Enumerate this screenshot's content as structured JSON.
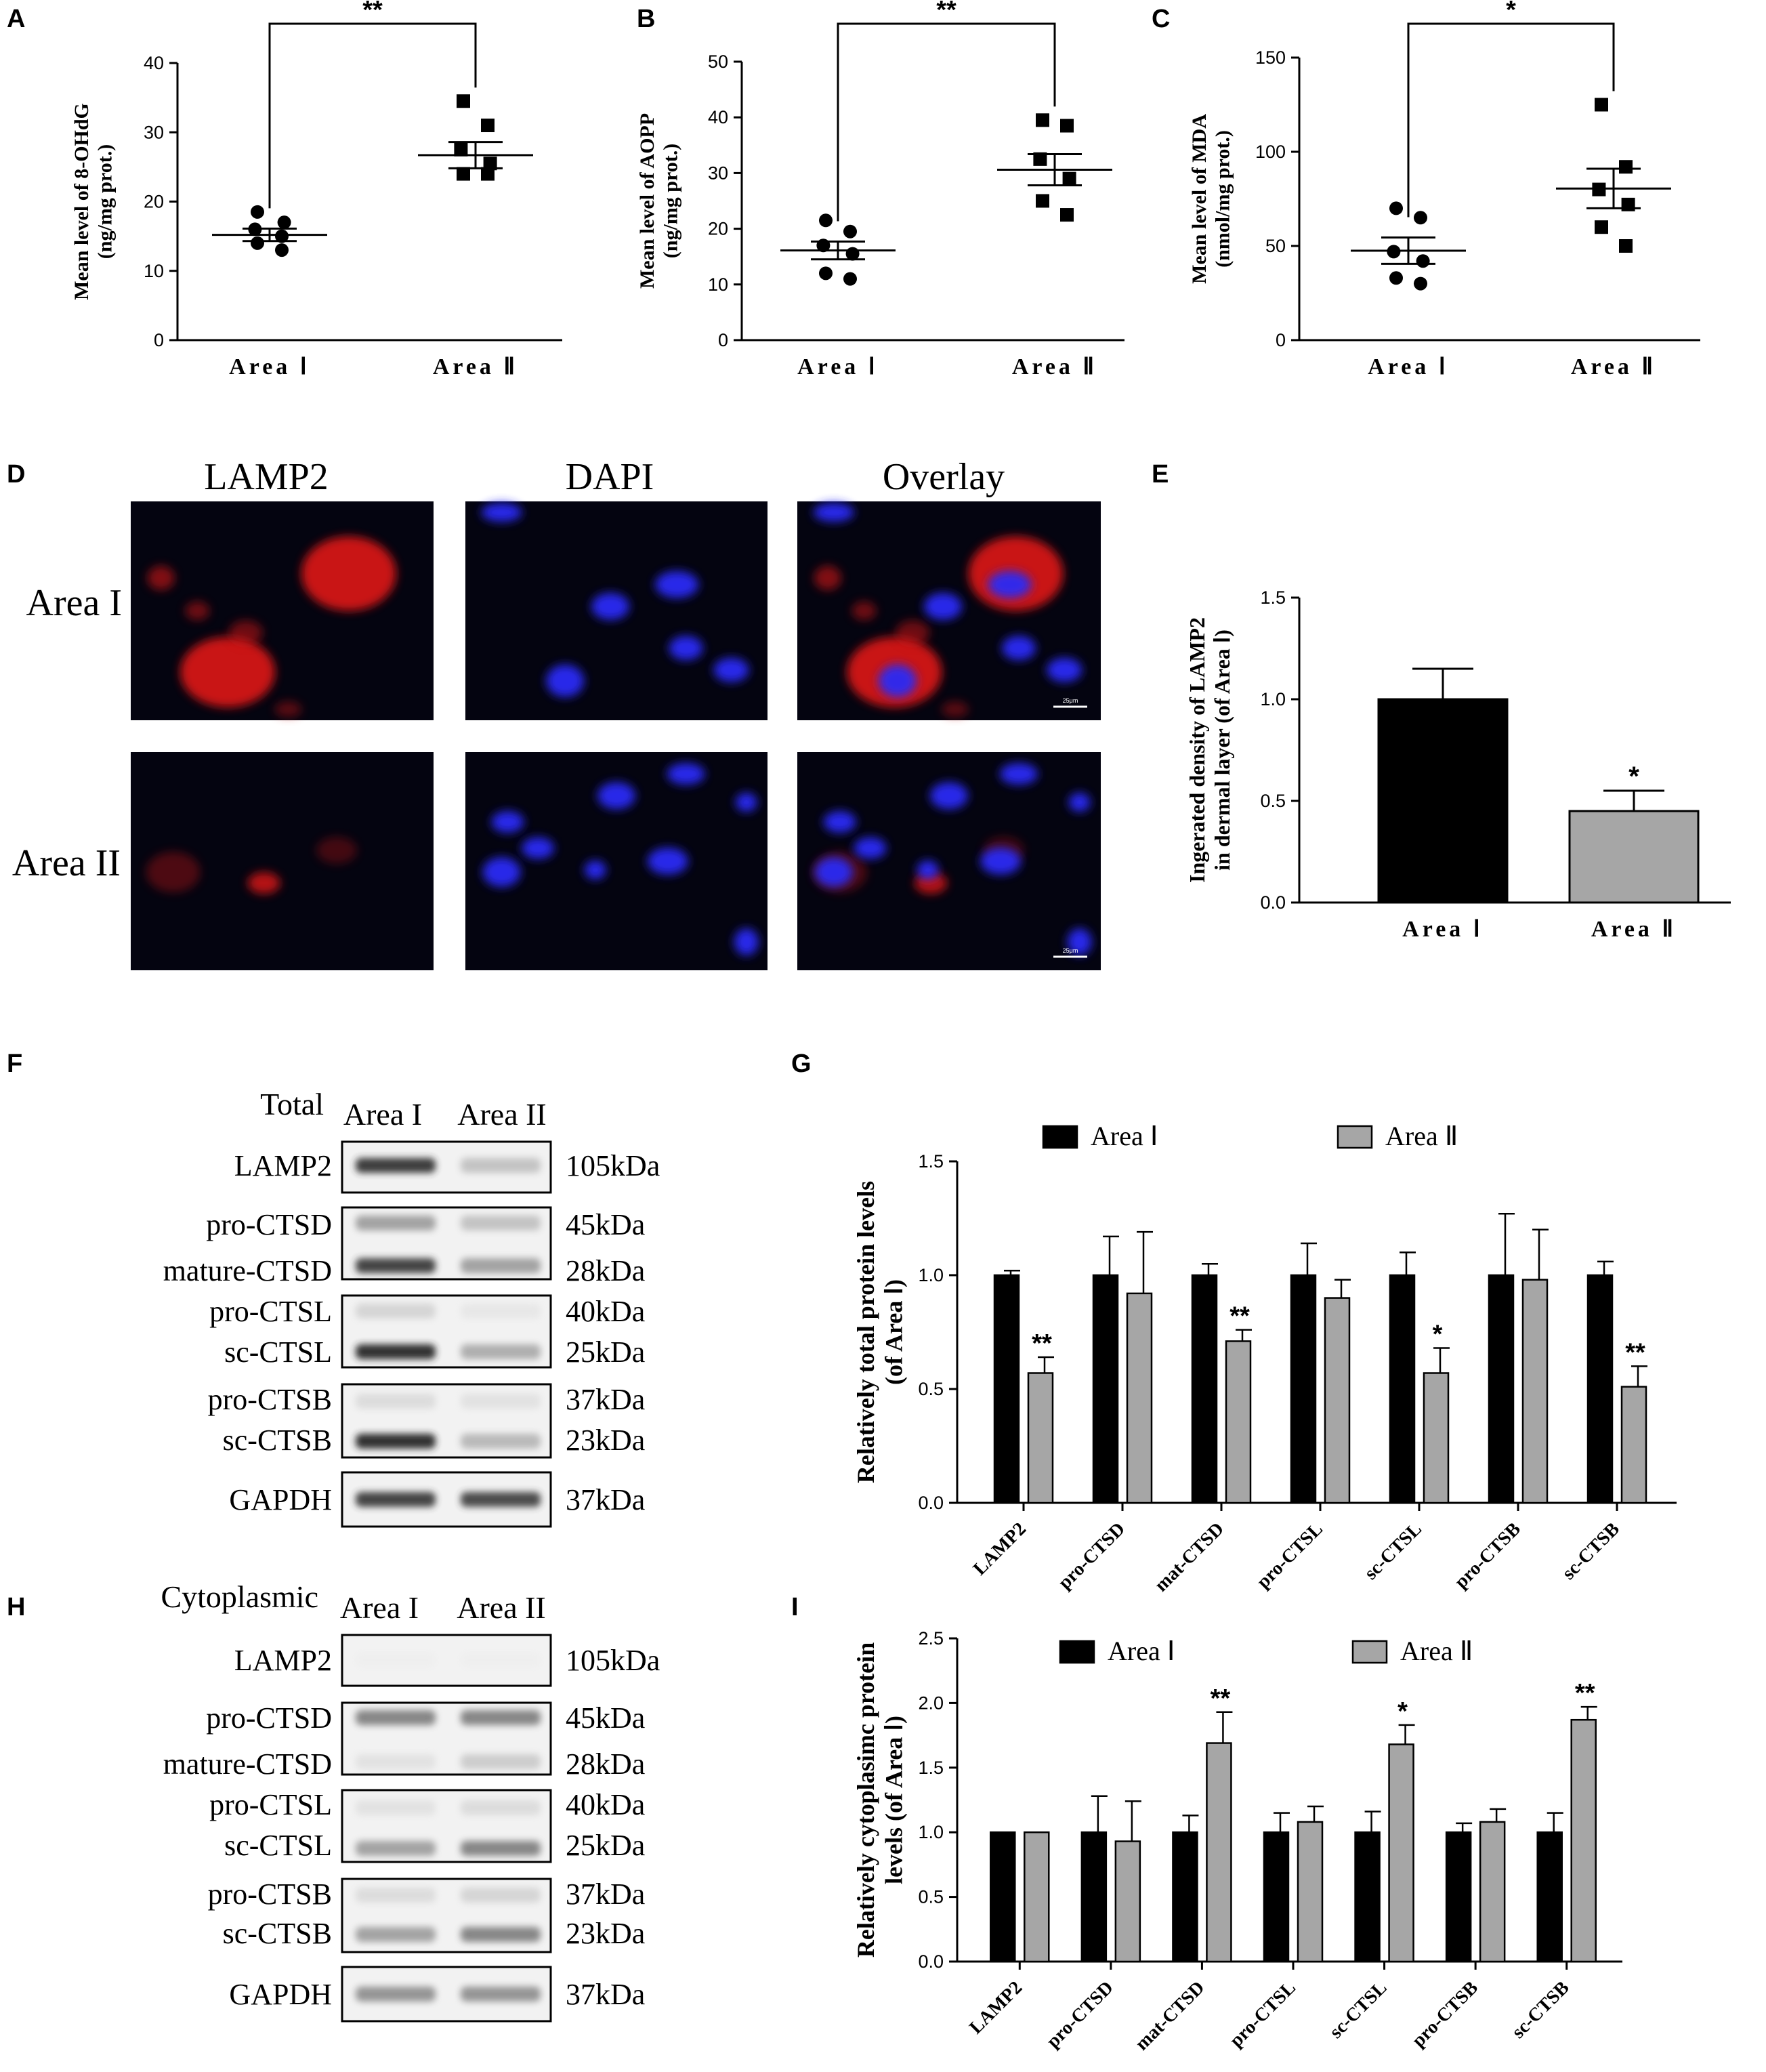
{
  "panel_labels": [
    "A",
    "B",
    "C",
    "D",
    "E",
    "F",
    "G",
    "H",
    "I"
  ],
  "group_labels": [
    "Area Ⅰ",
    "Area Ⅱ"
  ],
  "chart_data": [
    {
      "panel": "A",
      "type": "scatter",
      "ylabel": [
        "Mean level of 8-OHdG",
        "(ng/mg prot.)"
      ],
      "categories": [
        "Area Ⅰ",
        "Area Ⅱ"
      ],
      "ylim": [
        0,
        40
      ],
      "yticks": [
        0,
        10,
        20,
        30,
        40
      ],
      "series": [
        {
          "points": [
            14,
            15,
            16,
            17,
            18.5,
            13
          ],
          "mean": 15.2,
          "sem": 0.9,
          "marker": "circle"
        },
        {
          "points": [
            34.5,
            31,
            27.5,
            25.5,
            24,
            24
          ],
          "mean": 26.7,
          "sem": 1.9,
          "marker": "square"
        }
      ],
      "significance": "**"
    },
    {
      "panel": "B",
      "type": "scatter",
      "ylabel": [
        "Mean level of AOPP",
        "(ng/mg prot.)"
      ],
      "categories": [
        "Area Ⅰ",
        "Area Ⅱ"
      ],
      "ylim": [
        0,
        50
      ],
      "yticks": [
        0,
        10,
        20,
        30,
        40,
        50
      ],
      "series": [
        {
          "points": [
            21.5,
            19.5,
            17,
            15.5,
            12,
            11
          ],
          "mean": 16.1,
          "sem": 1.6,
          "marker": "circle"
        },
        {
          "points": [
            39.5,
            38.5,
            32.5,
            29,
            25,
            22.5
          ],
          "mean": 30.6,
          "sem": 2.8,
          "marker": "square"
        }
      ],
      "significance": "**"
    },
    {
      "panel": "C",
      "type": "scatter",
      "ylabel": [
        "Mean level of MDA",
        "(nmol/mg prot.)"
      ],
      "categories": [
        "Area Ⅰ",
        "Area Ⅱ"
      ],
      "ylim": [
        0,
        150
      ],
      "yticks": [
        0,
        50,
        100,
        150
      ],
      "series": [
        {
          "points": [
            70,
            65,
            47,
            42,
            33,
            30
          ],
          "mean": 47.5,
          "sem": 7,
          "marker": "circle"
        },
        {
          "points": [
            125,
            92,
            80,
            72,
            60,
            50
          ],
          "mean": 80.5,
          "sem": 10.5,
          "marker": "square"
        }
      ],
      "significance": "*"
    },
    {
      "panel": "E",
      "type": "bar",
      "ylabel": [
        "Ingerated density of LAMP2",
        "in dermal layer (of Area Ⅰ)"
      ],
      "categories": [
        "Area Ⅰ",
        "Area Ⅱ"
      ],
      "ylim": [
        0,
        1.5
      ],
      "yticks": [
        "0.0",
        "0.5",
        "1.0",
        "1.5"
      ],
      "values": [
        1.0,
        0.45
      ],
      "errors": [
        0.15,
        0.1
      ],
      "colors": [
        "#000000",
        "#a6a6a6"
      ],
      "significance": [
        "",
        "*"
      ]
    },
    {
      "panel": "G",
      "type": "bar",
      "ylabel": [
        "Relatively total protein levels",
        "(of Area Ⅰ)"
      ],
      "categories": [
        "LAMP2",
        "pro-CTSD",
        "mat-CTSD",
        "pro-CTSL",
        "sc-CTSL",
        "pro-CTSB",
        "sc-CTSB"
      ],
      "ylim": [
        0,
        1.5
      ],
      "yticks": [
        "0.0",
        "0.5",
        "1.0",
        "1.5"
      ],
      "legend_position": "top",
      "series": [
        {
          "name": "Area Ⅰ",
          "color": "#000000",
          "values": [
            1.0,
            1.0,
            1.0,
            1.0,
            1.0,
            1.0,
            1.0
          ],
          "errors": [
            0.02,
            0.17,
            0.05,
            0.14,
            0.1,
            0.27,
            0.06
          ]
        },
        {
          "name": "Area Ⅱ",
          "color": "#a6a6a6",
          "values": [
            0.57,
            0.92,
            0.71,
            0.9,
            0.57,
            0.98,
            0.51
          ],
          "errors": [
            0.07,
            0.27,
            0.05,
            0.08,
            0.11,
            0.22,
            0.09
          ]
        }
      ],
      "significance": [
        "**",
        "",
        "**",
        "",
        "*",
        "",
        "**"
      ]
    },
    {
      "panel": "I",
      "type": "bar",
      "ylabel": [
        "Relatively cytoplasimc protein",
        "levels (of Area Ⅰ)"
      ],
      "categories": [
        "LAMP2",
        "pro-CTSD",
        "mat-CTSD",
        "pro-CTSL",
        "sc-CTSL",
        "pro-CTSB",
        "sc-CTSB"
      ],
      "ylim": [
        0,
        2.5
      ],
      "yticks": [
        "0.0",
        "0.5",
        "1.0",
        "1.5",
        "2.0",
        "2.5"
      ],
      "legend_position": "top",
      "series": [
        {
          "name": "Area Ⅰ",
          "color": "#000000",
          "values": [
            1.0,
            1.0,
            1.0,
            1.0,
            1.0,
            1.0,
            1.0
          ],
          "errors": [
            0,
            0.28,
            0.13,
            0.15,
            0.16,
            0.07,
            0.15
          ]
        },
        {
          "name": "Area Ⅱ",
          "color": "#a6a6a6",
          "values": [
            1.0,
            0.93,
            1.69,
            1.08,
            1.68,
            1.08,
            1.87
          ],
          "errors": [
            0,
            0.31,
            0.24,
            0.12,
            0.15,
            0.1,
            0.1
          ]
        }
      ],
      "significance": [
        "",
        "",
        "**",
        "",
        "*",
        "",
        "**"
      ]
    }
  ],
  "microscopy": {
    "panel": "D",
    "columns": [
      "LAMP2",
      "DAPI",
      "Overlay"
    ],
    "rows": [
      "Area I",
      "Area II"
    ],
    "scale_bar": "25μm"
  },
  "blots": [
    {
      "panel": "F",
      "title": "Total",
      "lanes": [
        "Area I",
        "Area II"
      ],
      "boxes": [
        {
          "labels": [
            "LAMP2"
          ],
          "sizes": [
            "105kDa"
          ],
          "bands": [
            [
              0.92,
              0.45
            ]
          ]
        },
        {
          "labels": [
            "pro-CTSD",
            "mature-CTSD"
          ],
          "sizes": [
            "45kDa",
            "28kDa"
          ],
          "bands": [
            [
              0.6,
              0.45
            ],
            [
              0.9,
              0.6
            ]
          ]
        },
        {
          "labels": [
            "pro-CTSL",
            "sc-CTSL"
          ],
          "sizes": [
            "40kDa",
            "25kDa"
          ],
          "bands": [
            [
              0.35,
              0.2
            ],
            [
              0.95,
              0.55
            ]
          ]
        },
        {
          "labels": [
            "pro-CTSB",
            "sc-CTSB"
          ],
          "sizes": [
            "37kDa",
            "23kDa"
          ],
          "bands": [
            [
              0.3,
              0.25
            ],
            [
              0.95,
              0.5
            ]
          ]
        },
        {
          "labels": [
            "GAPDH"
          ],
          "sizes": [
            "37kDa"
          ],
          "bands": [
            [
              0.9,
              0.88
            ]
          ]
        }
      ]
    },
    {
      "panel": "H",
      "title": "Cytoplasmic",
      "lanes": [
        "Area I",
        "Area II"
      ],
      "boxes": [
        {
          "labels": [
            "LAMP2"
          ],
          "sizes": [
            "105kDa"
          ],
          "bands": [
            [
              0.05,
              0.05
            ]
          ]
        },
        {
          "labels": [
            "pro-CTSD",
            "mature-CTSD"
          ],
          "sizes": [
            "45kDa",
            "28kDa"
          ],
          "bands": [
            [
              0.7,
              0.7
            ],
            [
              0.25,
              0.4
            ]
          ]
        },
        {
          "labels": [
            "pro-CTSL",
            "sc-CTSL"
          ],
          "sizes": [
            "40kDa",
            "25kDa"
          ],
          "bands": [
            [
              0.25,
              0.3
            ],
            [
              0.6,
              0.7
            ]
          ]
        },
        {
          "labels": [
            "pro-CTSB",
            "sc-CTSB"
          ],
          "sizes": [
            "37kDa",
            "23kDa"
          ],
          "bands": [
            [
              0.3,
              0.35
            ],
            [
              0.6,
              0.7
            ]
          ]
        },
        {
          "labels": [
            "GAPDH"
          ],
          "sizes": [
            "37kDa"
          ],
          "bands": [
            [
              0.65,
              0.65
            ]
          ]
        }
      ]
    }
  ]
}
